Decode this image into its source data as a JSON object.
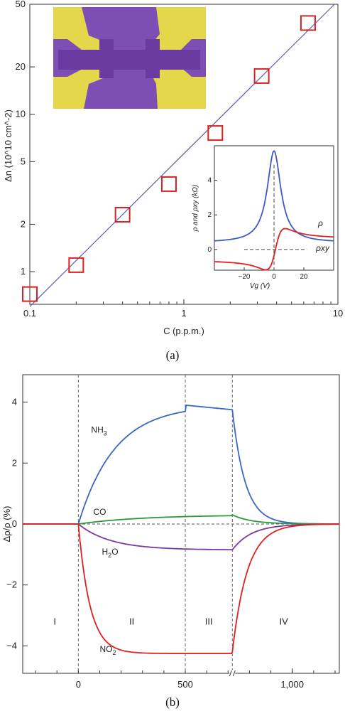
{
  "chart_data": [
    {
      "id": "a",
      "type": "scatter",
      "caption": "(a)",
      "xlabel": "C (p.p.m.)",
      "ylabel": "Δn (10^10 cm^-2)",
      "xscale": "log",
      "yscale": "log",
      "xlim": [
        0.1,
        10
      ],
      "ylim": [
        0.62,
        50
      ],
      "x_ticks": [
        0.1,
        1,
        10
      ],
      "x_tick_labels": [
        "0.1",
        "1",
        "10"
      ],
      "y_ticks": [
        1,
        2,
        5,
        10,
        20,
        50
      ],
      "y_tick_labels": [
        "1",
        "2",
        "5",
        "10",
        "20",
        "50"
      ],
      "points": [
        {
          "x": 0.1,
          "y": 0.72
        },
        {
          "x": 0.2,
          "y": 1.1
        },
        {
          "x": 0.4,
          "y": 2.3
        },
        {
          "x": 0.8,
          "y": 3.6
        },
        {
          "x": 1.6,
          "y": 7.6
        },
        {
          "x": 3.2,
          "y": 17.5
        },
        {
          "x": 6.4,
          "y": 38
        }
      ],
      "fit_line": [
        {
          "x": 0.1,
          "y": 0.6
        },
        {
          "x": 9.5,
          "y": 50
        }
      ],
      "marker_color": "#e02020",
      "line_color": "#5560a8",
      "inset_image": {
        "background": "#7d4fb5",
        "contact_color": "#e4d84a",
        "channel_color": "#6a3aa0"
      },
      "inset_chart": {
        "type": "line",
        "xlabel": "Vg (V)",
        "ylabel": "ρ and ρxy (kΩ)",
        "xlim": [
          -40,
          40
        ],
        "ylim": [
          -1.2,
          6
        ],
        "x_ticks": [
          -20,
          0,
          20
        ],
        "x_tick_labels": [
          "−20",
          "0",
          "20"
        ],
        "y_ticks": [
          0,
          2,
          4
        ],
        "y_tick_labels": [
          "0",
          "2",
          "4"
        ],
        "series": [
          {
            "name": "ρ",
            "color": "#3a5bc7",
            "function": "lorentzian"
          },
          {
            "name": "ρxy",
            "color": "#e02020",
            "function": "odd"
          }
        ]
      }
    },
    {
      "id": "b",
      "type": "line",
      "caption": "(b)",
      "xlabel": "",
      "ylabel": "Δρ/ρ (%)",
      "xlim": [
        -260,
        1220
      ],
      "ylim": [
        -4.9,
        4.9
      ],
      "x_ticks": [
        0,
        500,
        1000
      ],
      "x_tick_labels": [
        "0",
        "500",
        "1,000"
      ],
      "y_ticks": [
        -4,
        -2,
        0,
        2,
        4
      ],
      "y_tick_labels": [
        "−4",
        "−2",
        "0",
        "2",
        "4"
      ],
      "region_boundaries": [
        0,
        500,
        720
      ],
      "axis_break_at": 720,
      "regions": [
        {
          "label": "I",
          "x": -110
        },
        {
          "label": "II",
          "x": 250
        },
        {
          "label": "III",
          "x": 610
        },
        {
          "label": "IV",
          "x": 960
        }
      ],
      "series": [
        {
          "name": "NH3",
          "label": "NH",
          "sub": "3",
          "color": "#3a66c4",
          "label_x": 60,
          "label_y": 3.0,
          "plateau": 3.9,
          "end": 3.75
        },
        {
          "name": "CO",
          "label": "CO",
          "sub": "",
          "color": "#2a9a3a",
          "label_x": 70,
          "label_y": 0.3,
          "plateau": 0.3,
          "end": 0.3
        },
        {
          "name": "H2O",
          "label": "H",
          "sub": "2",
          "tail": "O",
          "color": "#7a3aa0",
          "label_x": 110,
          "label_y": -1.0,
          "plateau": -0.85,
          "end": -0.85
        },
        {
          "name": "NO2",
          "label": "NO",
          "sub": "2",
          "color": "#e02020",
          "label_x": 100,
          "label_y": -4.2,
          "plateau": -4.25,
          "end": -4.2
        }
      ]
    }
  ]
}
